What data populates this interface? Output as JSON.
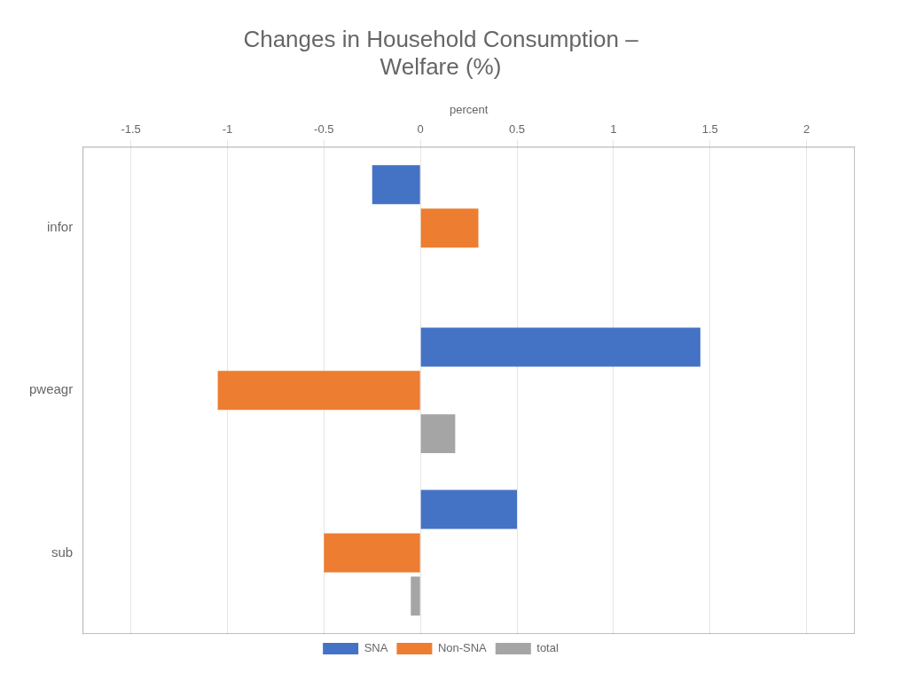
{
  "chart_data": {
    "type": "bar",
    "orientation": "horizontal",
    "title": "Changes in Household Consumption –\nWelfare (%)",
    "xlabel": "percent",
    "categories": [
      "infor",
      "pweagr",
      "sub"
    ],
    "series": [
      {
        "name": "SNA",
        "color": "#4472C4",
        "values": [
          -0.25,
          1.45,
          0.5
        ]
      },
      {
        "name": "Non-SNA",
        "color": "#ED7D31",
        "values": [
          0.3,
          -1.05,
          -0.5
        ]
      },
      {
        "name": "total",
        "color": "#A5A5A5",
        "values": [
          0.0,
          0.18,
          -0.05
        ]
      }
    ],
    "xlim": [
      -1.75,
      2.25
    ],
    "xticks": [
      -1.5,
      -1,
      -0.5,
      0,
      0.5,
      1,
      1.5,
      2
    ],
    "grid": true,
    "legend": "bottom"
  }
}
